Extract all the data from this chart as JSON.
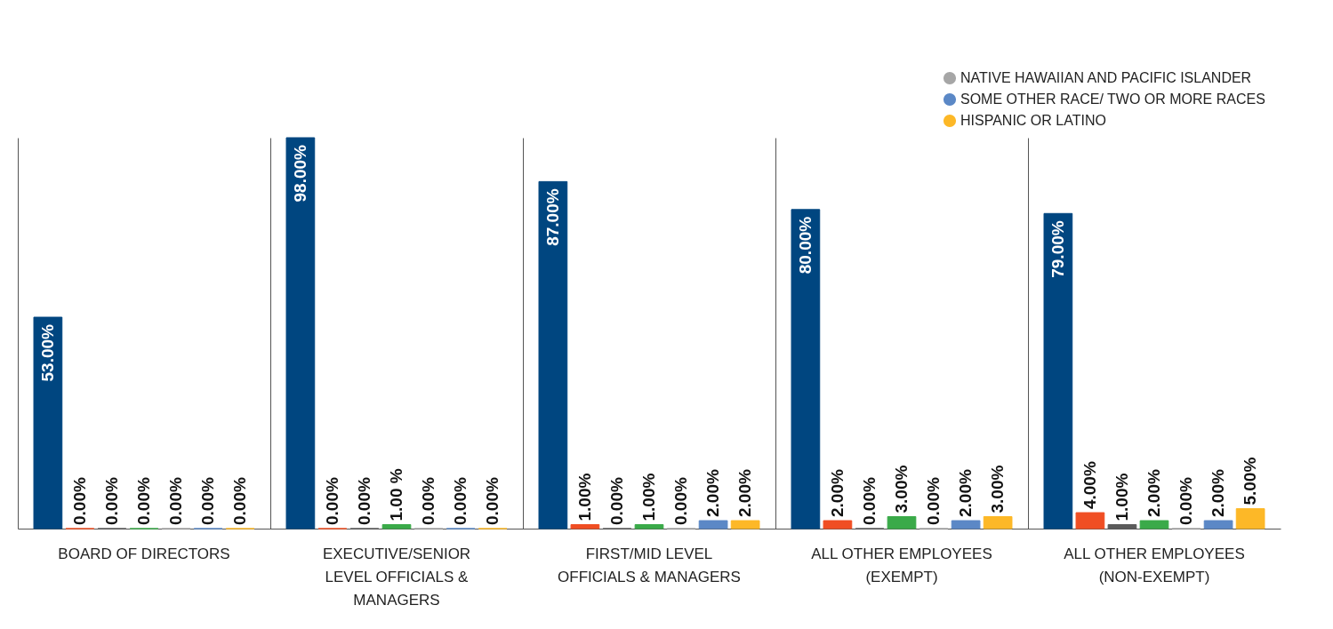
{
  "chart_data": {
    "type": "bar",
    "categories": [
      "BOARD OF DIRECTORS",
      "EXECUTIVE/SENIOR LEVEL OFFICIALS & MANAGERS",
      "FIRST/MID LEVEL OFFICIALS & MANAGERS",
      "ALL OTHER EMPLOYEES (EXEMPT)",
      "ALL OTHER EMPLOYEES (NON-EXEMPT)"
    ],
    "series": [
      {
        "color": "#004680",
        "values": [
          53,
          98,
          87,
          80,
          79
        ],
        "value_labels": [
          "53.00%",
          "98.00%",
          "87.00%",
          "80.00%",
          "79.00%"
        ]
      },
      {
        "color": "#f04e23",
        "values": [
          0,
          0,
          1,
          2,
          4
        ],
        "value_labels": [
          "0.00%",
          "0.00%",
          "1.00%",
          "2.00%",
          "4.00%"
        ]
      },
      {
        "color": "#5b5b5b",
        "values": [
          0,
          0,
          0,
          0,
          1
        ],
        "value_labels": [
          "0.00%",
          "0.00%",
          "0.00%",
          "0.00%",
          "1.00%"
        ]
      },
      {
        "color": "#3aaa49",
        "values": [
          0,
          1,
          1,
          3,
          2
        ],
        "value_labels": [
          "0.00%",
          "1.00 %",
          "1.00%",
          "3.00%",
          "2.00%"
        ]
      },
      {
        "name": "NATIVE HAWAIIAN AND PACIFIC ISLANDER",
        "color": "#a6a6a6",
        "values": [
          0,
          0,
          0,
          0,
          0
        ],
        "value_labels": [
          "0.00%",
          "0.00%",
          "0.00%",
          "0.00%",
          "0.00%"
        ]
      },
      {
        "name": "SOME OTHER RACE/ TWO OR MORE RACES",
        "color": "#5b88c6",
        "values": [
          0,
          0,
          2,
          2,
          2
        ],
        "value_labels": [
          "0.00%",
          "0.00%",
          "2.00%",
          "2.00%",
          "2.00%"
        ]
      },
      {
        "name": "HISPANIC OR LATINO",
        "color": "#fdb827",
        "values": [
          0,
          0,
          2,
          3,
          5
        ],
        "value_labels": [
          "0.00%",
          "0.00%",
          "2.00%",
          "3.00%",
          "5.00%"
        ]
      }
    ],
    "ylim": [
      0,
      98
    ],
    "tick_labels": "x",
    "grid": "x",
    "legend": "top right"
  }
}
